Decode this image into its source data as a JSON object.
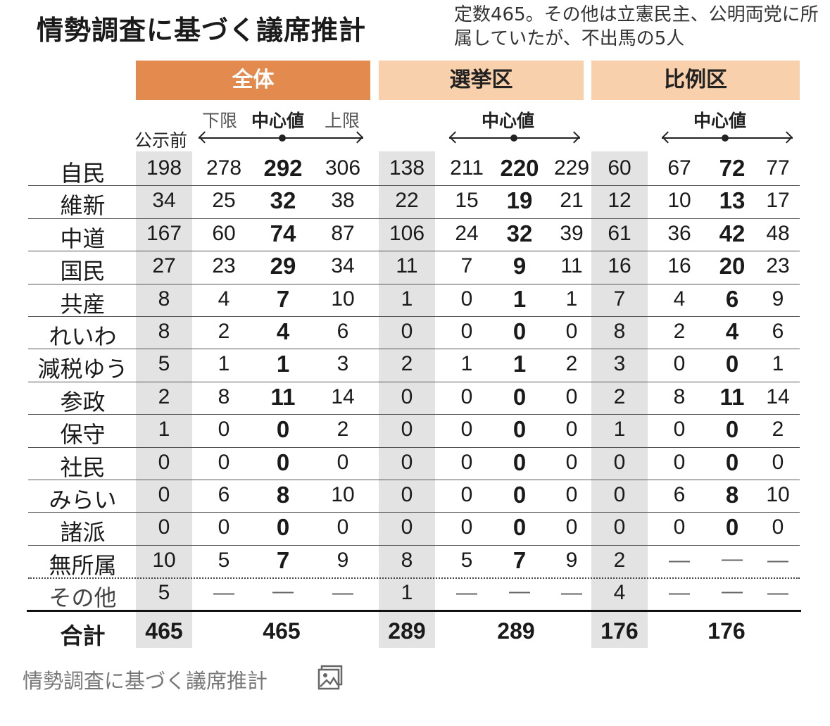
{
  "title": "情勢調査に基づく議席推計",
  "note": "定数465。その他は立憲民主、公明両党に所属していたが、不出馬の5人",
  "groups": [
    {
      "label": "全体"
    },
    {
      "label": "選挙区"
    },
    {
      "label": "比例区"
    }
  ],
  "subheaders": {
    "before": "公示前",
    "lower": "下限",
    "center": "中心値",
    "upper": "上限"
  },
  "chart_data": {
    "type": "table",
    "columns": [
      "公示前",
      "全体 下限",
      "全体 中心値",
      "全体 上限",
      "選挙区 公示前",
      "選挙区 下限",
      "選挙区 中心値",
      "選挙区 上限",
      "比例区 公示前",
      "比例区 下限",
      "比例区 中心値",
      "比例区 上限"
    ],
    "rows": [
      {
        "party": "自民",
        "values": [
          "198",
          "278",
          "292",
          "306",
          "138",
          "211",
          "220",
          "229",
          "60",
          "67",
          "72",
          "77"
        ]
      },
      {
        "party": "維新",
        "values": [
          "34",
          "25",
          "32",
          "38",
          "22",
          "15",
          "19",
          "21",
          "12",
          "10",
          "13",
          "17"
        ]
      },
      {
        "party": "中道",
        "values": [
          "167",
          "60",
          "74",
          "87",
          "106",
          "24",
          "32",
          "39",
          "61",
          "36",
          "42",
          "48"
        ]
      },
      {
        "party": "国民",
        "values": [
          "27",
          "23",
          "29",
          "34",
          "11",
          "7",
          "9",
          "11",
          "16",
          "16",
          "20",
          "23"
        ]
      },
      {
        "party": "共産",
        "values": [
          "8",
          "4",
          "7",
          "10",
          "1",
          "0",
          "1",
          "1",
          "7",
          "4",
          "6",
          "9"
        ]
      },
      {
        "party": "れいわ",
        "values": [
          "8",
          "2",
          "4",
          "6",
          "0",
          "0",
          "0",
          "0",
          "8",
          "2",
          "4",
          "6"
        ]
      },
      {
        "party": "減税ゆう",
        "values": [
          "5",
          "1",
          "1",
          "3",
          "2",
          "1",
          "1",
          "2",
          "3",
          "0",
          "0",
          "1"
        ]
      },
      {
        "party": "参政",
        "values": [
          "2",
          "8",
          "11",
          "14",
          "0",
          "0",
          "0",
          "0",
          "2",
          "8",
          "11",
          "14"
        ]
      },
      {
        "party": "保守",
        "values": [
          "1",
          "0",
          "0",
          "2",
          "0",
          "0",
          "0",
          "0",
          "1",
          "0",
          "0",
          "2"
        ]
      },
      {
        "party": "社民",
        "values": [
          "0",
          "0",
          "0",
          "0",
          "0",
          "0",
          "0",
          "0",
          "0",
          "0",
          "0",
          "0"
        ]
      },
      {
        "party": "みらい",
        "values": [
          "0",
          "6",
          "8",
          "10",
          "0",
          "0",
          "0",
          "0",
          "0",
          "6",
          "8",
          "10"
        ]
      },
      {
        "party": "諸派",
        "values": [
          "0",
          "0",
          "0",
          "0",
          "0",
          "0",
          "0",
          "0",
          "0",
          "0",
          "0",
          "0"
        ]
      },
      {
        "party": "無所属",
        "values": [
          "10",
          "5",
          "7",
          "9",
          "8",
          "5",
          "7",
          "9",
          "2",
          "—",
          "—",
          "—"
        ]
      },
      {
        "party": "その他",
        "values": [
          "5",
          "—",
          "—",
          "—",
          "1",
          "—",
          "—",
          "—",
          "4",
          "—",
          "—",
          "—"
        ]
      }
    ],
    "total": {
      "label": "合計",
      "values": [
        "465",
        "465",
        "289",
        "289",
        "176",
        "176"
      ]
    }
  },
  "caption": "情勢調査に基づく議席推計",
  "caption_icon": "image-icon",
  "colors": {
    "header_dark": "#e38a4e",
    "header_light": "#f8d1ac",
    "grey_column": "#e3e3e3"
  }
}
